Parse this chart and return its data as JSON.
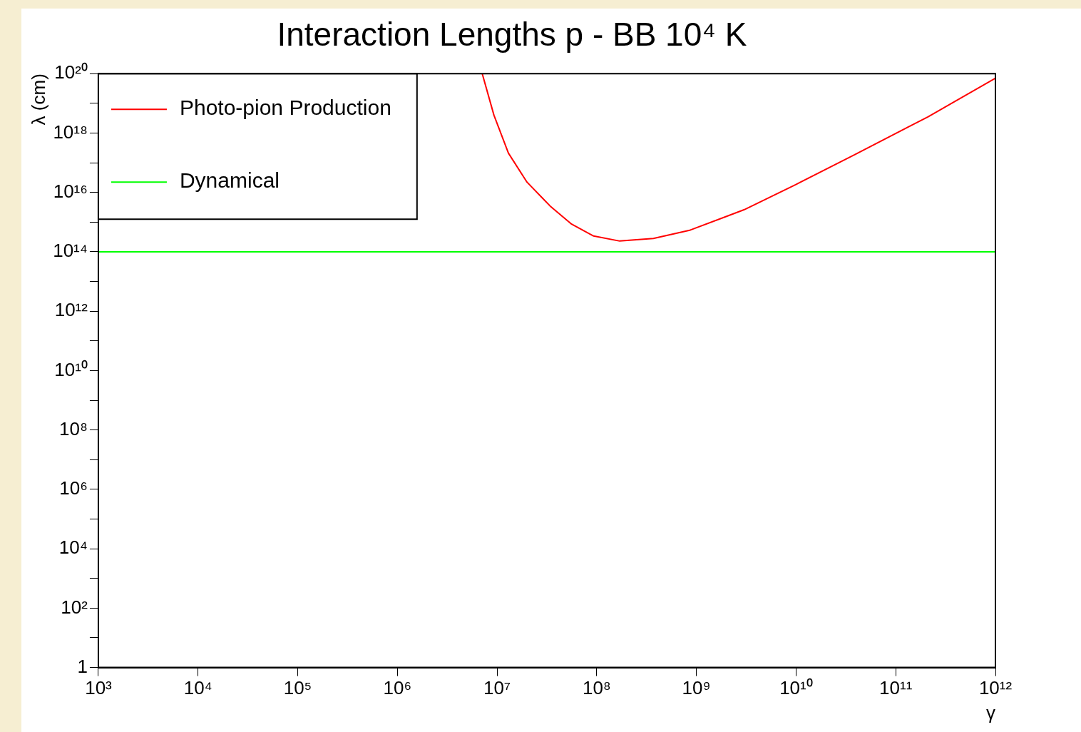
{
  "chart_data": {
    "type": "line",
    "title": "Interaction Lengths p - BB 10⁴ K",
    "xlabel": "γ",
    "ylabel": "λ (cm)",
    "log": "xy",
    "xlim": [
      1000,
      1000000000000.0
    ],
    "ylim": [
      1,
      1e+20
    ],
    "xticks": [
      {
        "value": 1000,
        "label": "10³"
      },
      {
        "value": 10000.0,
        "label": "10⁴"
      },
      {
        "value": 100000.0,
        "label": "10⁵"
      },
      {
        "value": 1000000.0,
        "label": "10⁶"
      },
      {
        "value": 10000000.0,
        "label": "10⁷"
      },
      {
        "value": 100000000.0,
        "label": "10⁸"
      },
      {
        "value": 1000000000.0,
        "label": "10⁹"
      },
      {
        "value": 10000000000.0,
        "label": "10¹⁰"
      },
      {
        "value": 100000000000.0,
        "label": "10¹¹"
      },
      {
        "value": 1000000000000.0,
        "label": "10¹²"
      }
    ],
    "yticks": [
      1,
      {
        "value": 10,
        "label": null
      },
      {
        "value": 100,
        "label": "10²"
      },
      {
        "value": 1000,
        "label": null
      },
      {
        "value": 10000.0,
        "label": "10⁴"
      },
      {
        "value": 100000.0,
        "label": null
      },
      {
        "value": 1000000.0,
        "label": "10⁶"
      },
      {
        "value": 10000000.0,
        "label": null
      },
      {
        "value": 100000000.0,
        "label": "10⁸"
      },
      {
        "value": 1000000000.0,
        "label": null
      },
      {
        "value": 10000000000.0,
        "label": "10¹⁰"
      },
      {
        "value": 100000000000.0,
        "label": null
      },
      {
        "value": 1000000000000.0,
        "label": "10¹²"
      },
      {
        "value": 10000000000000.0,
        "label": null
      },
      {
        "value": 100000000000000.0,
        "label": "10¹⁴"
      },
      {
        "value": 1000000000000000.0,
        "label": null
      },
      {
        "value": 1e+16,
        "label": "10¹⁶"
      },
      {
        "value": 1e+17,
        "label": null
      },
      {
        "value": 1e+18,
        "label": "10¹⁸"
      },
      {
        "value": 1e+19,
        "label": null
      },
      {
        "value": 1e+20,
        "label": "10²⁰"
      }
    ],
    "grid": false,
    "legend": "top left",
    "marker": "none",
    "line_style": "solid",
    "series": [
      {
        "name": "Photo-pion Production",
        "color": "#ff0000",
        "x": [
          7100000.0,
          9300000.0,
          13000000.0,
          20000000.0,
          34000000.0,
          56000000.0,
          93000000.0,
          170000000.0,
          370000000.0,
          870000000.0,
          3000000000.0,
          9800000000.0,
          38000000000.0,
          210000000000.0,
          1000000000000.0
        ],
        "values": [
          1e+20,
          4e+18,
          2.1e+17,
          2.2e+16,
          3500000000000000.0,
          850000000000000.0,
          340000000000000.0,
          230000000000000.0,
          280000000000000.0,
          540000000000000.0,
          2600000000000000.0,
          1.8e+16,
          1.8e+17,
          3.5e+18,
          7e+19
        ]
      },
      {
        "name": "Dynamical",
        "color": "#00ff00",
        "x": [
          1000,
          1000000000000.0
        ],
        "values": [
          100000000000000.0,
          100000000000000.0
        ]
      }
    ]
  }
}
